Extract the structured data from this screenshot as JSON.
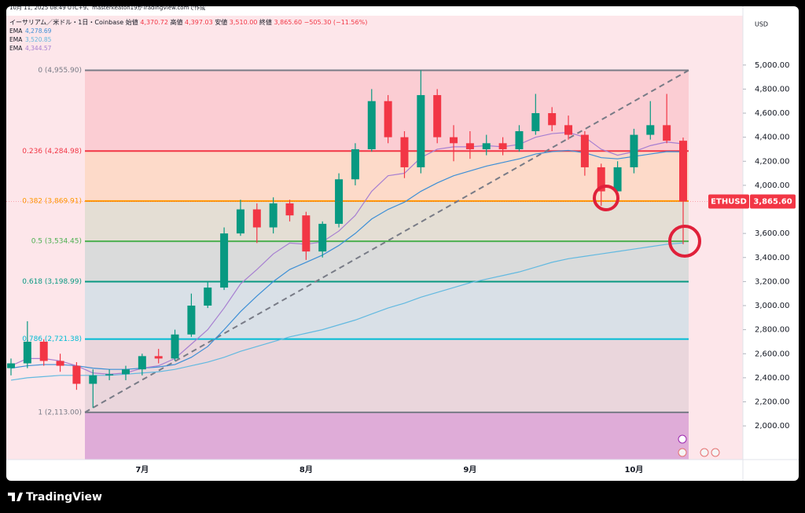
{
  "chart_data": {
    "type": "candlestick",
    "created_note": "10月 11, 2025 08:49 UTC+9、masterkeaton19がTradingView.comで作成",
    "symbol_line": "イーサリアム／米ドル・1日・Coinbase",
    "ohlc_header": [
      {
        "label": "始値",
        "value": "4,370.72"
      },
      {
        "label": "高値",
        "value": "4,397.03"
      },
      {
        "label": "安値",
        "value": "3,510.00"
      },
      {
        "label": "終値",
        "value": "3,865.60"
      }
    ],
    "change_label": "−505.30 (−11.56%)",
    "currency": "USD",
    "ticker": "ETHUSD",
    "last_price_label": "3,865.60",
    "brand": "TradingView",
    "up_color": "#089981",
    "down_color": "#f23645",
    "categories": [
      null,
      null,
      null,
      null,
      null,
      null,
      null,
      null,
      "7月",
      null,
      null,
      null,
      null,
      null,
      null,
      null,
      null,
      null,
      "8月",
      null,
      null,
      null,
      null,
      null,
      null,
      null,
      null,
      null,
      "9月",
      null,
      null,
      null,
      null,
      null,
      null,
      null,
      null,
      null,
      "10月",
      null,
      null,
      null
    ],
    "open": [
      2480,
      2520,
      2700,
      2540,
      2500,
      2350,
      2420,
      2430,
      2470,
      2580,
      2560,
      2760,
      3000,
      3150,
      3600,
      3800,
      3650,
      3850,
      3750,
      3450,
      3680,
      4050,
      4300,
      4700,
      4400,
      4150,
      4750,
      4400,
      4350,
      4300,
      4350,
      4300,
      4450,
      4600,
      4500,
      4420,
      4150,
      3950,
      4150,
      4420,
      4500,
      4370.72
    ],
    "high": [
      2560,
      2870,
      2720,
      2600,
      2530,
      2470,
      2470,
      2500,
      2600,
      2640,
      2800,
      3100,
      3200,
      3650,
      3880,
      3850,
      3900,
      3880,
      3780,
      3700,
      4100,
      4350,
      4800,
      4750,
      4450,
      4955.9,
      4800,
      4500,
      4450,
      4420,
      4400,
      4500,
      4760,
      4650,
      4580,
      4450,
      4180,
      4200,
      4470,
      4700,
      4760,
      4397.03
    ],
    "low": [
      2420,
      2480,
      2500,
      2450,
      2300,
      2150,
      2380,
      2380,
      2420,
      2520,
      2540,
      2740,
      2980,
      3130,
      3580,
      3520,
      3600,
      3700,
      3380,
      3400,
      3650,
      4000,
      4280,
      4350,
      4060,
      4100,
      4350,
      4200,
      4220,
      4250,
      4250,
      4280,
      4420,
      4450,
      4380,
      4080,
      3830,
      3950,
      4100,
      4380,
      4350,
      3510
    ],
    "close": [
      2520,
      2700,
      2540,
      2500,
      2350,
      2420,
      2430,
      2470,
      2580,
      2560,
      2760,
      3000,
      3150,
      3600,
      3800,
      3650,
      3850,
      3750,
      3450,
      3680,
      4050,
      4300,
      4700,
      4400,
      4150,
      4750,
      4400,
      4350,
      4300,
      4350,
      4300,
      4450,
      4600,
      4500,
      4420,
      4150,
      3950,
      4150,
      4420,
      4500,
      4370.72,
      3865.6
    ],
    "series": [
      {
        "name": "EMA",
        "value_label": "4,278.69",
        "color": "#3d8fd6",
        "values": [
          2480,
          2500,
          2510,
          2510,
          2500,
          2480,
          2470,
          2470,
          2480,
          2490,
          2510,
          2570,
          2660,
          2800,
          2950,
          3080,
          3200,
          3300,
          3360,
          3420,
          3500,
          3600,
          3720,
          3800,
          3860,
          3950,
          4020,
          4080,
          4120,
          4160,
          4190,
          4220,
          4260,
          4280,
          4290,
          4270,
          4230,
          4220,
          4240,
          4260,
          4280,
          4278.69
        ]
      },
      {
        "name": "EMA",
        "value_label": "3,520.85",
        "color": "#62b9e0",
        "values": [
          2380,
          2400,
          2410,
          2420,
          2420,
          2420,
          2420,
          2430,
          2440,
          2450,
          2470,
          2500,
          2530,
          2570,
          2620,
          2660,
          2700,
          2740,
          2770,
          2800,
          2840,
          2880,
          2930,
          2980,
          3020,
          3070,
          3110,
          3150,
          3190,
          3220,
          3250,
          3280,
          3320,
          3360,
          3390,
          3410,
          3430,
          3450,
          3470,
          3490,
          3510,
          3520.85
        ]
      },
      {
        "name": "EMA",
        "value_label": "4,344.57",
        "color": "#a77fd1",
        "values": [
          2500,
          2560,
          2560,
          2540,
          2500,
          2440,
          2430,
          2440,
          2480,
          2500,
          2560,
          2680,
          2800,
          2980,
          3180,
          3300,
          3430,
          3520,
          3510,
          3530,
          3620,
          3750,
          3950,
          4080,
          4100,
          4230,
          4300,
          4320,
          4320,
          4330,
          4320,
          4340,
          4400,
          4430,
          4440,
          4400,
          4300,
          4250,
          4280,
          4330,
          4360,
          4344.57
        ]
      }
    ],
    "fib_levels": [
      {
        "value": 4955.9,
        "label": "0 (4,955.90)",
        "color": "#787b86"
      },
      {
        "value": 4284.98,
        "label": "0.236 (4,284.98)",
        "color": "#f23645"
      },
      {
        "value": 3869.91,
        "label": "0.382 (3,869.91)",
        "color": "#ff9800"
      },
      {
        "value": 3534.45,
        "label": "0.5 (3,534.45)",
        "color": "#4caf50"
      },
      {
        "value": 3198.99,
        "label": "0.618 (3,198.99)",
        "color": "#089981"
      },
      {
        "value": 2721.38,
        "label": "0.786 (2,721.38)",
        "color": "#00bcd4"
      },
      {
        "value": 2113.0,
        "label": "1 (2,113.00)",
        "color": "#787b86"
      }
    ],
    "ylim": [
      1720,
      5410
    ],
    "yticks": [
      {
        "value": 5000,
        "label": "5,000.00"
      },
      {
        "value": 4800,
        "label": "4,800.00"
      },
      {
        "value": 4600,
        "label": "4,600.00"
      },
      {
        "value": 4400,
        "label": "4,400.00"
      },
      {
        "value": 4200,
        "label": "4,200.00"
      },
      {
        "value": 4000,
        "label": "4,000.00"
      },
      {
        "value": 3600,
        "label": "3,600.00"
      },
      {
        "value": 3400,
        "label": "3,400.00"
      },
      {
        "value": 3200,
        "label": "3,200.00"
      },
      {
        "value": 3000,
        "label": "3,000.00"
      },
      {
        "value": 2800,
        "label": "2,800.00"
      },
      {
        "value": 2600,
        "label": "2,600.00"
      },
      {
        "value": 2400,
        "label": "2,400.00"
      },
      {
        "value": 2200,
        "label": "2,200.00"
      },
      {
        "value": 2000,
        "label": "2,000.00"
      }
    ]
  }
}
